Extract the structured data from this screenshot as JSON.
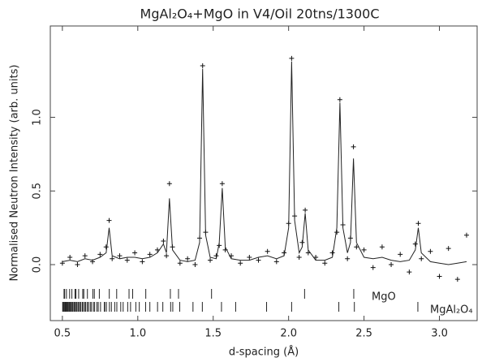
{
  "chart_data": {
    "type": "line",
    "title": "MgAl₂O₄+MgO in V4/Oil 20tns/1300C",
    "x_label": "d-spacing (Å)",
    "y_label": "Normalised Neutron Intensity (arb. units)",
    "xlim": [
      0.42,
      3.25
    ],
    "ylim": [
      -0.38,
      1.62
    ],
    "xticks": [
      0.5,
      {
        "value": 1.0,
        "label": "1.0"
      },
      1.5,
      {
        "value": 2.0,
        "label": "2.0"
      },
      2.5,
      {
        "value": 3.0,
        "label": "3.0"
      }
    ],
    "yticks": [
      {
        "value": 0.0,
        "label": "0.0"
      },
      0.5,
      {
        "value": 1.0,
        "label": "1.0"
      }
    ],
    "x": [
      0.5,
      0.55,
      0.6,
      0.65,
      0.7,
      0.75,
      0.79,
      0.81,
      0.83,
      0.88,
      0.93,
      0.98,
      1.03,
      1.08,
      1.13,
      1.17,
      1.19,
      1.21,
      1.23,
      1.28,
      1.33,
      1.38,
      1.41,
      1.43,
      1.45,
      1.48,
      1.52,
      1.54,
      1.56,
      1.58,
      1.62,
      1.68,
      1.74,
      1.8,
      1.86,
      1.92,
      1.97,
      2.0,
      2.02,
      2.04,
      2.07,
      2.09,
      2.11,
      2.13,
      2.18,
      2.24,
      2.29,
      2.32,
      2.34,
      2.36,
      2.39,
      2.41,
      2.43,
      2.45,
      2.5,
      2.56,
      2.62,
      2.68,
      2.74,
      2.8,
      2.84,
      2.86,
      2.88,
      2.94,
      3.0,
      3.06,
      3.12,
      3.18
    ],
    "series": [
      {
        "mode": "markers",
        "color": "#111111",
        "values": [
          0.01,
          0.05,
          0.0,
          0.06,
          0.02,
          0.07,
          0.12,
          0.3,
          0.04,
          0.06,
          0.03,
          0.08,
          0.02,
          0.07,
          0.1,
          0.16,
          0.06,
          0.55,
          0.12,
          0.01,
          0.04,
          0.0,
          0.18,
          1.35,
          0.22,
          0.03,
          0.06,
          0.13,
          0.55,
          0.1,
          0.06,
          0.01,
          0.05,
          0.03,
          0.09,
          0.02,
          0.08,
          0.28,
          1.4,
          0.33,
          0.05,
          0.15,
          0.37,
          0.08,
          0.05,
          0.01,
          0.08,
          0.22,
          1.12,
          0.27,
          0.04,
          0.18,
          0.8,
          0.12,
          0.1,
          -0.02,
          0.12,
          0.0,
          0.07,
          -0.05,
          0.14,
          0.28,
          0.04,
          0.09,
          -0.08,
          0.11,
          -0.1,
          0.2
        ]
      },
      {
        "mode": "lines",
        "color": "#222222",
        "values": [
          0.02,
          0.03,
          0.02,
          0.04,
          0.03,
          0.05,
          0.08,
          0.25,
          0.06,
          0.04,
          0.05,
          0.05,
          0.04,
          0.05,
          0.08,
          0.14,
          0.08,
          0.45,
          0.1,
          0.03,
          0.02,
          0.03,
          0.15,
          1.33,
          0.2,
          0.05,
          0.04,
          0.15,
          0.52,
          0.12,
          0.04,
          0.03,
          0.03,
          0.05,
          0.06,
          0.04,
          0.06,
          0.25,
          1.38,
          0.3,
          0.08,
          0.12,
          0.35,
          0.1,
          0.03,
          0.03,
          0.05,
          0.25,
          1.1,
          0.25,
          0.08,
          0.15,
          0.72,
          0.15,
          0.05,
          0.04,
          0.05,
          0.03,
          0.02,
          0.03,
          0.1,
          0.25,
          0.08,
          0.02,
          0.01,
          0.0,
          0.01,
          0.02
        ]
      }
    ],
    "reflections": [
      {
        "name": "MgO",
        "x": [
          2.432,
          2.106,
          1.489,
          1.27,
          1.216,
          1.053,
          0.966,
          0.942,
          0.86,
          0.811,
          0.745,
          0.712,
          0.702,
          0.666,
          0.642,
          0.635,
          0.608,
          0.59,
          0.584,
          0.563,
          0.548,
          0.527,
          0.515,
          0.511
        ]
      },
      {
        "name": "MgAl₂O₄",
        "x": [
          2.857,
          2.436,
          2.333,
          2.02,
          1.854,
          1.649,
          1.555,
          1.428,
          1.366,
          1.278,
          1.232,
          1.218,
          1.166,
          1.131,
          1.08,
          1.052,
          1.01,
          0.987,
          0.952,
          0.933,
          0.903,
          0.887,
          0.861,
          0.847,
          0.825,
          0.812,
          0.792,
          0.781,
          0.778,
          0.753,
          0.738,
          0.729,
          0.714,
          0.706,
          0.693,
          0.685,
          0.673,
          0.666,
          0.655,
          0.649,
          0.639,
          0.633,
          0.623,
          0.618,
          0.609,
          0.604,
          0.596,
          0.591,
          0.583,
          0.579,
          0.571,
          0.567,
          0.56,
          0.556,
          0.55,
          0.546,
          0.54,
          0.536,
          0.53,
          0.527,
          0.522,
          0.518,
          0.513,
          0.51,
          0.505,
          0.502
        ]
      }
    ]
  }
}
